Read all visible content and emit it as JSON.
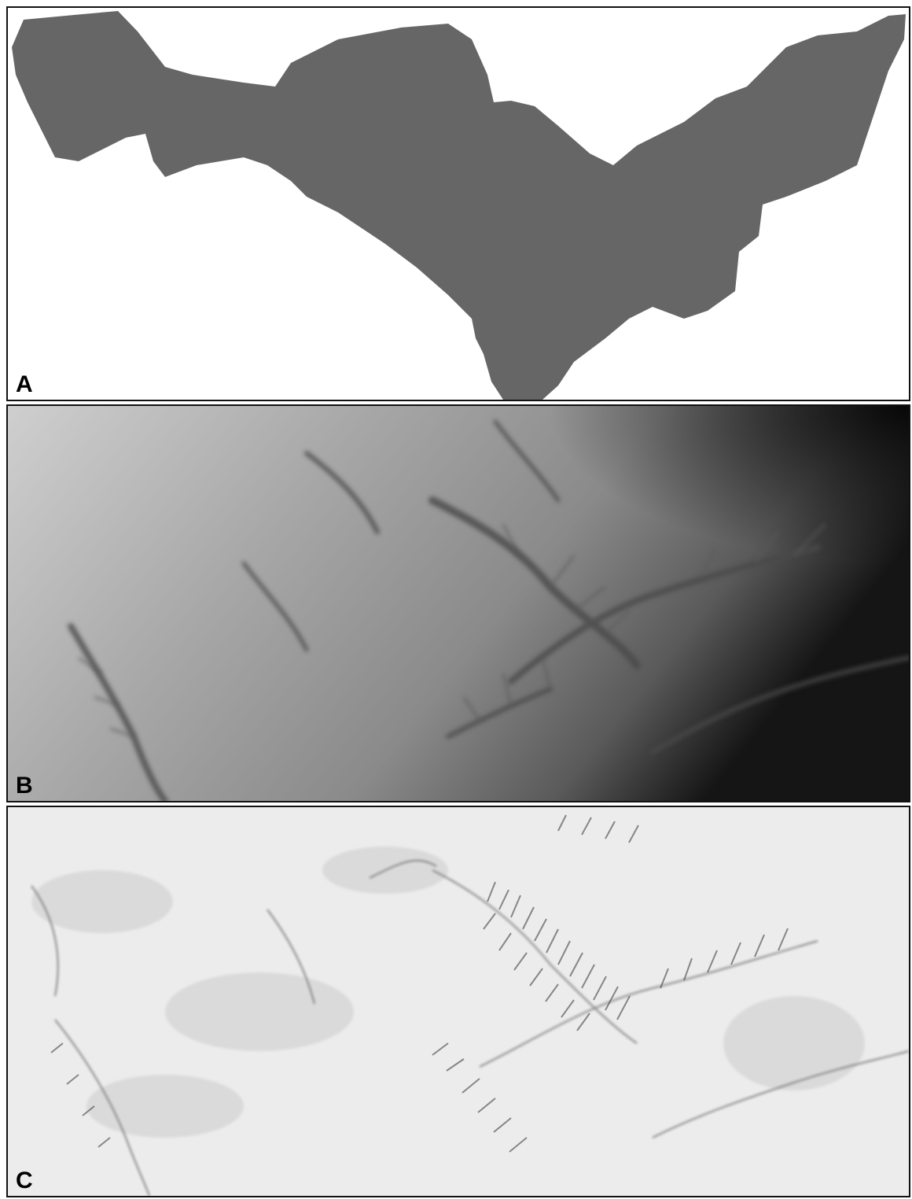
{
  "panels": [
    {
      "id": "A",
      "label": "A",
      "content": "catchment-outline",
      "fill": "#666666"
    },
    {
      "id": "B",
      "label": "B",
      "content": "elevation-grayscale"
    },
    {
      "id": "C",
      "label": "C",
      "content": "hillshade-relief"
    }
  ],
  "colors": {
    "border": "#111111",
    "catchment_fill": "#666666",
    "background": "#ffffff"
  }
}
